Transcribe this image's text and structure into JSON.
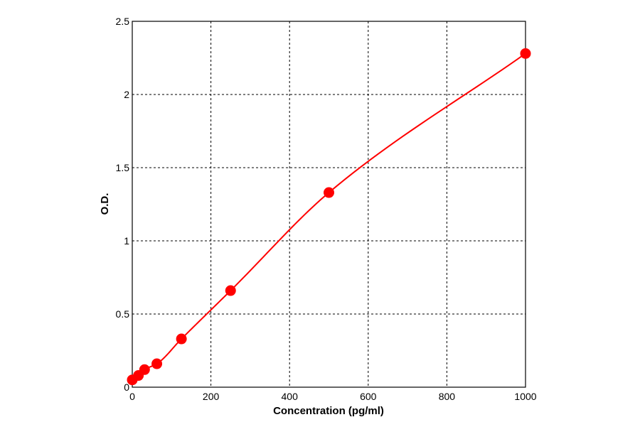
{
  "chart_data": {
    "type": "scatter",
    "title": "",
    "xlabel": "Concentration (pg/ml)",
    "ylabel": "O.D.",
    "xlim": [
      0,
      1000
    ],
    "ylim": [
      0,
      2.5
    ],
    "x_ticks": [
      0,
      200,
      400,
      600,
      800,
      1000
    ],
    "y_ticks": [
      0,
      0.5,
      1,
      1.5,
      2,
      2.5
    ],
    "x_tick_labels": [
      "0",
      "200",
      "400",
      "600",
      "800",
      "1000"
    ],
    "y_tick_labels": [
      "0",
      "0.5",
      "1",
      "1.5",
      "2",
      "2.5"
    ],
    "grid": true,
    "legend": "none",
    "points": [
      {
        "x": 0,
        "y": 0.05
      },
      {
        "x": 15.6,
        "y": 0.08
      },
      {
        "x": 31.25,
        "y": 0.12
      },
      {
        "x": 62.5,
        "y": 0.16
      },
      {
        "x": 125,
        "y": 0.33
      },
      {
        "x": 250,
        "y": 0.66
      },
      {
        "x": 500,
        "y": 1.33
      },
      {
        "x": 1000,
        "y": 2.28
      }
    ],
    "fit_curve": true,
    "colors": {
      "series": "#ff0000",
      "grid": "#000000",
      "axis": "#000000"
    }
  }
}
